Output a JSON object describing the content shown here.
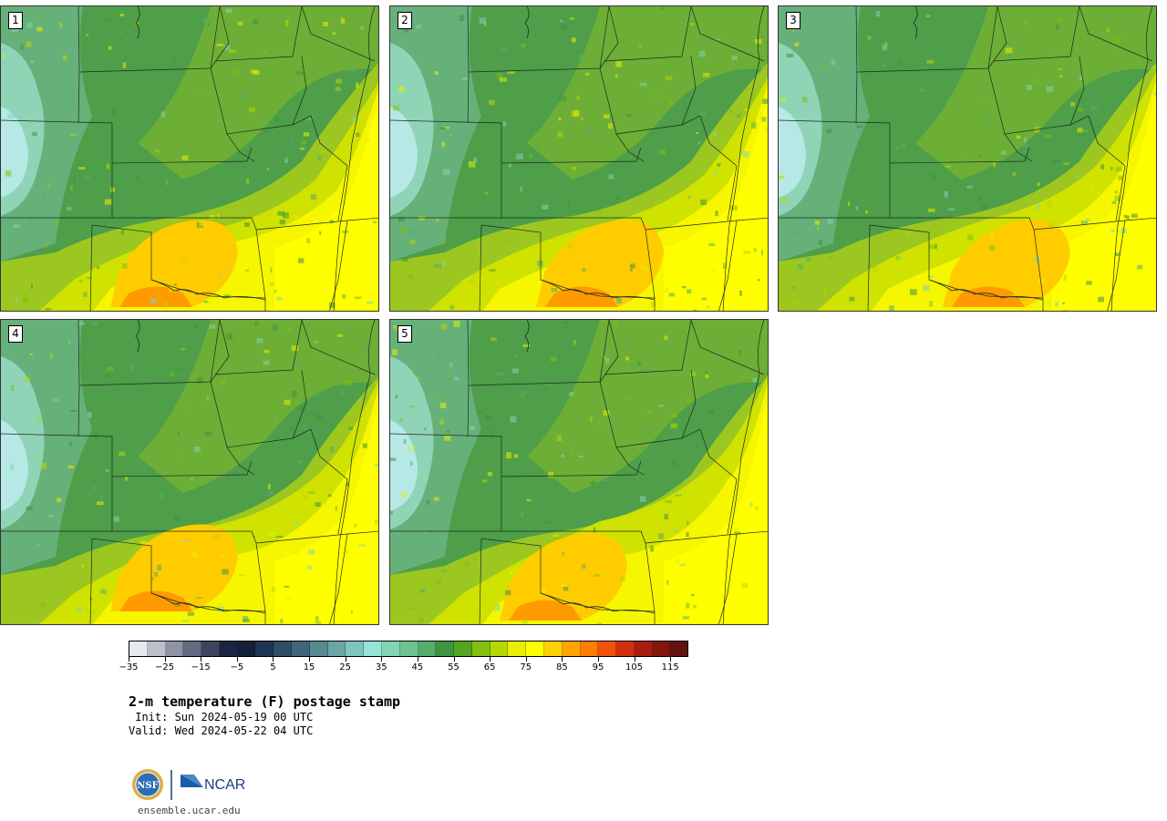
{
  "panels": [
    {
      "label": "1",
      "variant": 0
    },
    {
      "label": "2",
      "variant": 1
    },
    {
      "label": "3",
      "variant": 2
    },
    {
      "label": "4",
      "variant": 3
    },
    {
      "label": "5",
      "variant": 4
    }
  ],
  "colorbar": {
    "colors": [
      "#e6e9ef",
      "#bcbfcc",
      "#8f93a6",
      "#646a82",
      "#3d4460",
      "#1b2440",
      "#12203a",
      "#1d3550",
      "#2f4d66",
      "#41657a",
      "#558a8e",
      "#6aa6a6",
      "#7fc4bd",
      "#94e4d8",
      "#80d6b0",
      "#6cc493",
      "#57ad6a",
      "#3f9440",
      "#53a51f",
      "#82bf10",
      "#b6d800",
      "#e6f000",
      "#ffff00",
      "#ffd000",
      "#ffa500",
      "#ff7d00",
      "#f0520a",
      "#cf310f",
      "#a61e10",
      "#85160e",
      "#62130e"
    ],
    "tick_labels": [
      "−35",
      "−25",
      "−15",
      "−5",
      "5",
      "15",
      "25",
      "35",
      "45",
      "55",
      "65",
      "75",
      "85",
      "95",
      "105",
      "115"
    ]
  },
  "title": "2-m temperature (F) postage stamp",
  "init_line": " Init: Sun 2024-05-19 00 UTC",
  "valid_line": "Valid: Wed 2024-05-22 04 UTC",
  "logos": {
    "nsf": "NSF",
    "ncar": "NCAR"
  },
  "site": "ensemble.ucar.edu"
}
